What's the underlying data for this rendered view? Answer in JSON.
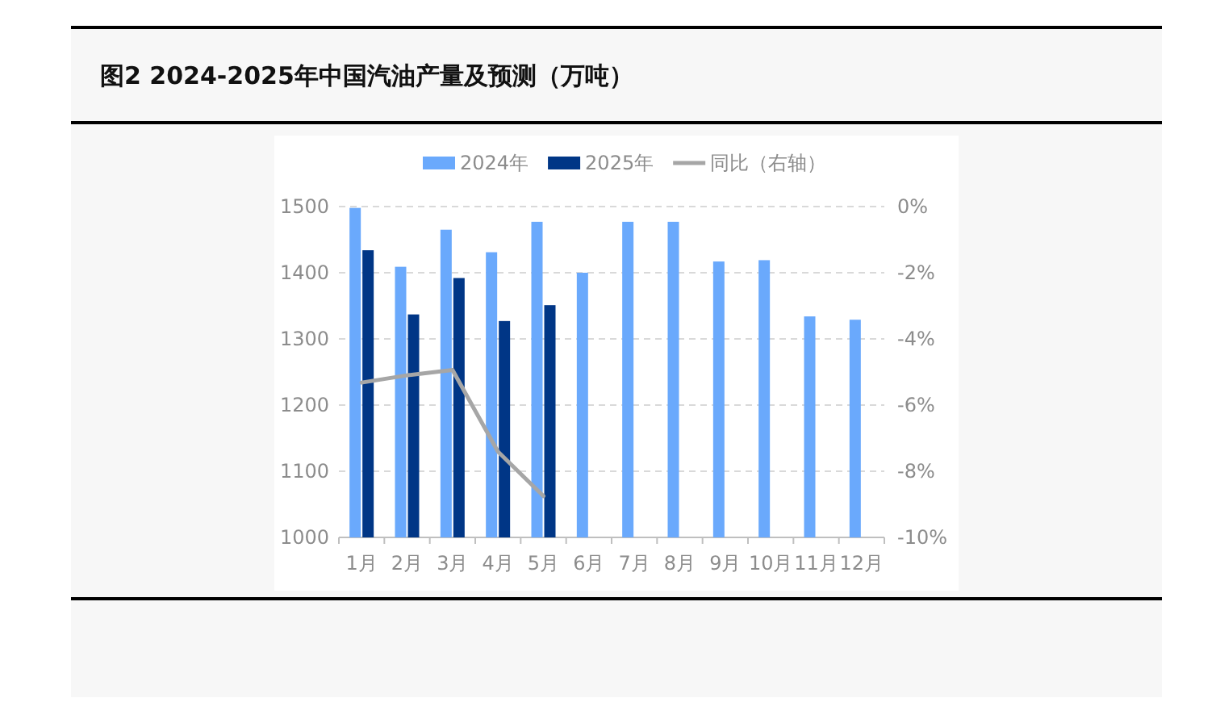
{
  "chart_data": {
    "type": "bar",
    "title": "图2 2024-2025年中国汽油产量及预测（万吨）",
    "categories": [
      "1月",
      "2月",
      "3月",
      "4月",
      "5月",
      "6月",
      "7月",
      "8月",
      "9月",
      "10月",
      "11月",
      "12月"
    ],
    "series": [
      {
        "name": "2024年",
        "color": "#6aa9fc",
        "values": [
          1498,
          1409,
          1465,
          1431,
          1477,
          1400,
          1477,
          1477,
          1417,
          1419,
          1334,
          1329
        ]
      },
      {
        "name": "2025年",
        "color": "#003686",
        "values": [
          1434,
          1337,
          1392,
          1327,
          1351,
          null,
          null,
          null,
          null,
          null,
          null,
          null
        ]
      },
      {
        "name": "同比（右轴）",
        "type": "line",
        "axis": "y2",
        "color": "#a6a6a6",
        "values": [
          -5.32,
          -5.1,
          -4.94,
          -7.41,
          -8.75,
          null,
          null,
          null,
          null,
          null,
          null,
          null
        ]
      }
    ],
    "ylim": [
      1000,
      1500
    ],
    "yticks": [
      1000,
      1100,
      1200,
      1300,
      1400,
      1500
    ],
    "y2lim": [
      -10,
      0
    ],
    "y2ticks": [
      {
        "value": 0,
        "label": "0%"
      },
      {
        "value": -2,
        "label": "-2%"
      },
      {
        "value": -4,
        "label": "-4%"
      },
      {
        "value": -6,
        "label": "-6%"
      },
      {
        "value": -8,
        "label": "-8%"
      },
      {
        "value": -10,
        "label": "-10%"
      }
    ],
    "grid": "y",
    "legend": "top",
    "marker": "none",
    "line_style": "solid"
  }
}
